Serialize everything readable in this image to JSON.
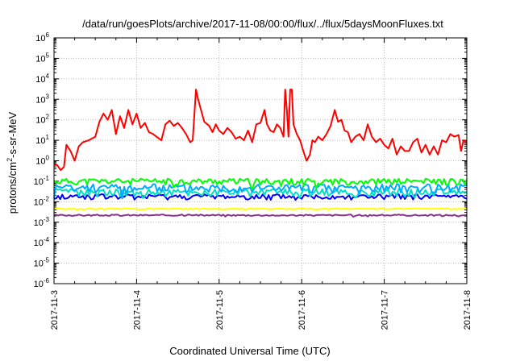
{
  "chart_data": {
    "type": "line",
    "title": "/data/run/goesPlots/archive/2017-11-08/00:00/flux/../flux/5daysMoonFluxes.txt",
    "xlabel": "Coordinated Universal Time (UTC)",
    "ylabel": {
      "base": "protons/cm",
      "sup": "2",
      "rest": "-s-sr-MeV"
    },
    "y_scale": "log",
    "ylim": [
      1e-06,
      1000000.0
    ],
    "grid": true,
    "legend": "none",
    "y_ticks": [
      {
        "exp": "-6"
      },
      {
        "exp": "-5"
      },
      {
        "exp": "-4"
      },
      {
        "exp": "-3"
      },
      {
        "exp": "-2"
      },
      {
        "exp": "-1"
      },
      {
        "exp": "0"
      },
      {
        "exp": "1"
      },
      {
        "exp": "2"
      },
      {
        "exp": "3"
      },
      {
        "exp": "4"
      },
      {
        "exp": "5"
      },
      {
        "exp": "6"
      }
    ],
    "x_ticks": [
      "2017-11-3",
      "2017-11-4",
      "2017-11-5",
      "2017-11-6",
      "2017-11-7",
      "2017-11-8"
    ],
    "series": [
      {
        "color": "#ff0000",
        "points": [
          [
            0.0,
            0.7
          ],
          [
            0.04,
            0.6
          ],
          [
            0.08,
            0.35
          ],
          [
            0.12,
            0.5
          ],
          [
            0.15,
            6
          ],
          [
            0.2,
            3
          ],
          [
            0.25,
            1
          ],
          [
            0.3,
            5
          ],
          [
            0.35,
            8
          ],
          [
            0.42,
            10
          ],
          [
            0.5,
            15
          ],
          [
            0.55,
            80
          ],
          [
            0.6,
            200
          ],
          [
            0.65,
            100
          ],
          [
            0.7,
            300
          ],
          [
            0.75,
            20
          ],
          [
            0.8,
            150
          ],
          [
            0.85,
            40
          ],
          [
            0.9,
            300
          ],
          [
            0.95,
            60
          ],
          [
            1.0,
            200
          ],
          [
            1.05,
            40
          ],
          [
            1.1,
            70
          ],
          [
            1.15,
            25
          ],
          [
            1.2,
            20
          ],
          [
            1.3,
            10
          ],
          [
            1.35,
            60
          ],
          [
            1.4,
            90
          ],
          [
            1.45,
            50
          ],
          [
            1.5,
            70
          ],
          [
            1.55,
            40
          ],
          [
            1.6,
            20
          ],
          [
            1.65,
            8
          ],
          [
            1.68,
            10
          ],
          [
            1.72,
            3000
          ],
          [
            1.74,
            1200
          ],
          [
            1.78,
            300
          ],
          [
            1.82,
            80
          ],
          [
            1.88,
            50
          ],
          [
            1.92,
            25
          ],
          [
            1.96,
            60
          ],
          [
            2.0,
            30
          ],
          [
            2.05,
            20
          ],
          [
            2.1,
            40
          ],
          [
            2.15,
            25
          ],
          [
            2.2,
            12
          ],
          [
            2.25,
            15
          ],
          [
            2.3,
            10
          ],
          [
            2.35,
            30
          ],
          [
            2.4,
            8
          ],
          [
            2.45,
            60
          ],
          [
            2.5,
            70
          ],
          [
            2.55,
            300
          ],
          [
            2.58,
            60
          ],
          [
            2.62,
            30
          ],
          [
            2.66,
            25
          ],
          [
            2.7,
            60
          ],
          [
            2.74,
            40
          ],
          [
            2.78,
            15
          ],
          [
            2.8,
            3000
          ],
          [
            2.82,
            300
          ],
          [
            2.84,
            15
          ],
          [
            2.86,
            3000
          ],
          [
            2.88,
            3000
          ],
          [
            2.9,
            60
          ],
          [
            2.94,
            20
          ],
          [
            2.98,
            10
          ],
          [
            3.02,
            3
          ],
          [
            3.06,
            1
          ],
          [
            3.1,
            2
          ],
          [
            3.13,
            10
          ],
          [
            3.16,
            8
          ],
          [
            3.2,
            15
          ],
          [
            3.25,
            10
          ],
          [
            3.3,
            20
          ],
          [
            3.35,
            50
          ],
          [
            3.4,
            300
          ],
          [
            3.44,
            80
          ],
          [
            3.48,
            100
          ],
          [
            3.52,
            30
          ],
          [
            3.56,
            25
          ],
          [
            3.6,
            8
          ],
          [
            3.65,
            15
          ],
          [
            3.7,
            20
          ],
          [
            3.75,
            10
          ],
          [
            3.8,
            60
          ],
          [
            3.85,
            15
          ],
          [
            3.9,
            8
          ],
          [
            3.95,
            12
          ],
          [
            4.0,
            6
          ],
          [
            4.05,
            4
          ],
          [
            4.1,
            12
          ],
          [
            4.15,
            2
          ],
          [
            4.2,
            5
          ],
          [
            4.25,
            3
          ],
          [
            4.3,
            3
          ],
          [
            4.35,
            8
          ],
          [
            4.4,
            12
          ],
          [
            4.45,
            2.5
          ],
          [
            4.5,
            6
          ],
          [
            4.55,
            2
          ],
          [
            4.6,
            5
          ],
          [
            4.65,
            2
          ],
          [
            4.7,
            10
          ],
          [
            4.75,
            8
          ],
          [
            4.8,
            20
          ],
          [
            4.85,
            15
          ],
          [
            4.9,
            18
          ],
          [
            4.93,
            3
          ],
          [
            4.96,
            10
          ],
          [
            5.0,
            8
          ]
        ]
      },
      {
        "color": "#00ff00",
        "base": 0.1,
        "variation": 0.35,
        "seed": 11
      },
      {
        "color": "#00aaff",
        "base": 0.05,
        "variation": 0.45,
        "seed": 23
      },
      {
        "color": "#00e0c0",
        "base": 0.03,
        "variation": 0.4,
        "seed": 37
      },
      {
        "color": "#0000ff",
        "base": 0.018,
        "variation": 0.3,
        "seed": 41
      },
      {
        "color": "#ffff00",
        "base": 0.0045,
        "variation": 0.05,
        "seed": 53
      },
      {
        "color": "#883388",
        "base": 0.0022,
        "variation": 0.08,
        "seed": 67
      }
    ]
  }
}
